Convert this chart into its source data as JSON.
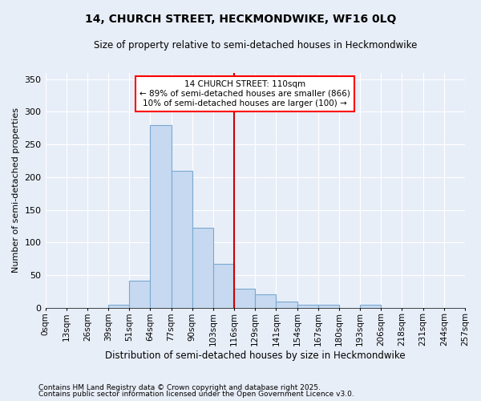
{
  "title": "14, CHURCH STREET, HECKMONDWIKE, WF16 0LQ",
  "subtitle": "Size of property relative to semi-detached houses in Heckmondwike",
  "xlabel": "Distribution of semi-detached houses by size in Heckmondwike",
  "ylabel": "Number of semi-detached properties",
  "bin_labels": [
    "0sqm",
    "13sqm",
    "26sqm",
    "39sqm",
    "51sqm",
    "64sqm",
    "77sqm",
    "90sqm",
    "103sqm",
    "116sqm",
    "129sqm",
    "141sqm",
    "154sqm",
    "167sqm",
    "180sqm",
    "193sqm",
    "206sqm",
    "218sqm",
    "231sqm",
    "244sqm",
    "257sqm"
  ],
  "bar_values": [
    0,
    0,
    0,
    5,
    42,
    280,
    210,
    122,
    67,
    29,
    20,
    10,
    5,
    5,
    0,
    5,
    0,
    0,
    0,
    0,
    0
  ],
  "bar_color": "#c6d9f0",
  "bar_edge_color": "#7aa8d2",
  "background_color": "#e8eef8",
  "grid_color": "#ffffff",
  "property_line_x": 9,
  "annotation_text_line1": "14 CHURCH STREET: 110sqm",
  "annotation_text_line2": "← 89% of semi-detached houses are smaller (866)",
  "annotation_text_line3": "10% of semi-detached houses are larger (100) →",
  "ylim": [
    0,
    360
  ],
  "yticks": [
    0,
    50,
    100,
    150,
    200,
    250,
    300,
    350
  ],
  "footnote1": "Contains HM Land Registry data © Crown copyright and database right 2025.",
  "footnote2": "Contains public sector information licensed under the Open Government Licence v3.0."
}
